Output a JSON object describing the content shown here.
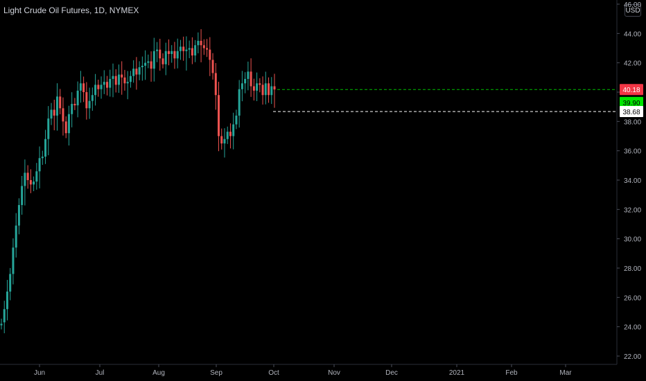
{
  "header": {
    "title": "Light Crude Oil Futures, 1D, NYMEX"
  },
  "currency_button": {
    "label": "USD"
  },
  "colors": {
    "background": "#000000",
    "up_candle": "#26a69a",
    "down_candle": "#ef5350",
    "axis_text": "#b2b5be",
    "last_price_tag": "#f23645",
    "green_tag": "#00e600",
    "white_tag": "#ffffff"
  },
  "chart_data": {
    "type": "candlestick",
    "title": "Light Crude Oil Futures, 1D, NYMEX",
    "ylim": [
      22,
      46
    ],
    "y_ticks": [
      "22.00",
      "24.00",
      "26.00",
      "28.00",
      "30.00",
      "32.00",
      "34.00",
      "36.00",
      "38.00",
      "40.00",
      "42.00",
      "44.00",
      "46.00"
    ],
    "x_ticks": [
      "Jun",
      "Jul",
      "Aug",
      "Sep",
      "Oct",
      "Nov",
      "Dec",
      "2021",
      "Feb",
      "Mar"
    ],
    "price_tags": [
      {
        "label": "40.18",
        "value": 40.18,
        "color": "#f23645",
        "text_color": "#ffffff",
        "line": "dashed-green"
      },
      {
        "label": "39.90",
        "value": 39.3,
        "color": "#00e600",
        "text_color": "#000000",
        "line": "none"
      },
      {
        "label": "38.68",
        "value": 38.68,
        "color": "#ffffff",
        "text_color": "#000000",
        "line": "dashed-white"
      }
    ],
    "closes": [
      24.2,
      25.2,
      26.4,
      27.6,
      29.4,
      30.9,
      32.3,
      33.6,
      34.5,
      34.0,
      33.7,
      33.9,
      34.6,
      35.5,
      35.6,
      36.8,
      38.2,
      38.8,
      38.4,
      39.7,
      38.9,
      38.0,
      37.2,
      38.5,
      39.2,
      39.1,
      40.1,
      40.6,
      40.0,
      38.9,
      39.4,
      39.8,
      40.5,
      40.2,
      40.5,
      40.7,
      40.3,
      40.9,
      41.1,
      40.5,
      41.2,
      41.0,
      40.6,
      40.7,
      41.1,
      41.6,
      41.2,
      41.7,
      41.8,
      42.0,
      42.1,
      41.6,
      42.8,
      42.9,
      42.3,
      41.9,
      42.8,
      42.6,
      42.8,
      42.3,
      42.8,
      43.1,
      42.8,
      42.9,
      43.0,
      42.5,
      43.2,
      43.5,
      43.2,
      43.0,
      42.9,
      42.2,
      41.3,
      39.8,
      37.0,
      36.5,
      36.8,
      37.3,
      37.0,
      37.8,
      38.4,
      40.2,
      40.6,
      40.9,
      41.4,
      40.4,
      40.1,
      40.6,
      40.5,
      39.8,
      40.6,
      39.8,
      40.4,
      40.18
    ],
    "opens": [
      24.1,
      24.3,
      25.2,
      26.4,
      27.6,
      29.4,
      30.9,
      32.3,
      33.6,
      34.5,
      34.0,
      33.7,
      33.9,
      34.6,
      35.5,
      35.6,
      36.8,
      38.2,
      38.8,
      38.4,
      39.7,
      38.9,
      38.0,
      37.2,
      38.5,
      39.2,
      39.1,
      40.1,
      40.6,
      40.0,
      38.9,
      39.4,
      39.8,
      40.5,
      40.2,
      40.5,
      40.7,
      40.3,
      40.9,
      41.1,
      40.5,
      41.2,
      41.0,
      40.6,
      40.7,
      41.1,
      41.6,
      41.2,
      41.7,
      41.8,
      42.0,
      42.1,
      41.6,
      42.8,
      42.9,
      42.3,
      41.9,
      42.8,
      42.6,
      42.8,
      42.3,
      42.8,
      43.1,
      42.8,
      42.9,
      43.0,
      42.5,
      43.2,
      43.5,
      43.2,
      43.0,
      42.9,
      42.2,
      41.3,
      39.8,
      37.0,
      36.5,
      36.8,
      37.3,
      37.0,
      37.8,
      38.4,
      40.2,
      40.6,
      40.9,
      41.4,
      40.4,
      40.1,
      40.6,
      40.5,
      39.8,
      40.6,
      39.8,
      40.4
    ]
  }
}
